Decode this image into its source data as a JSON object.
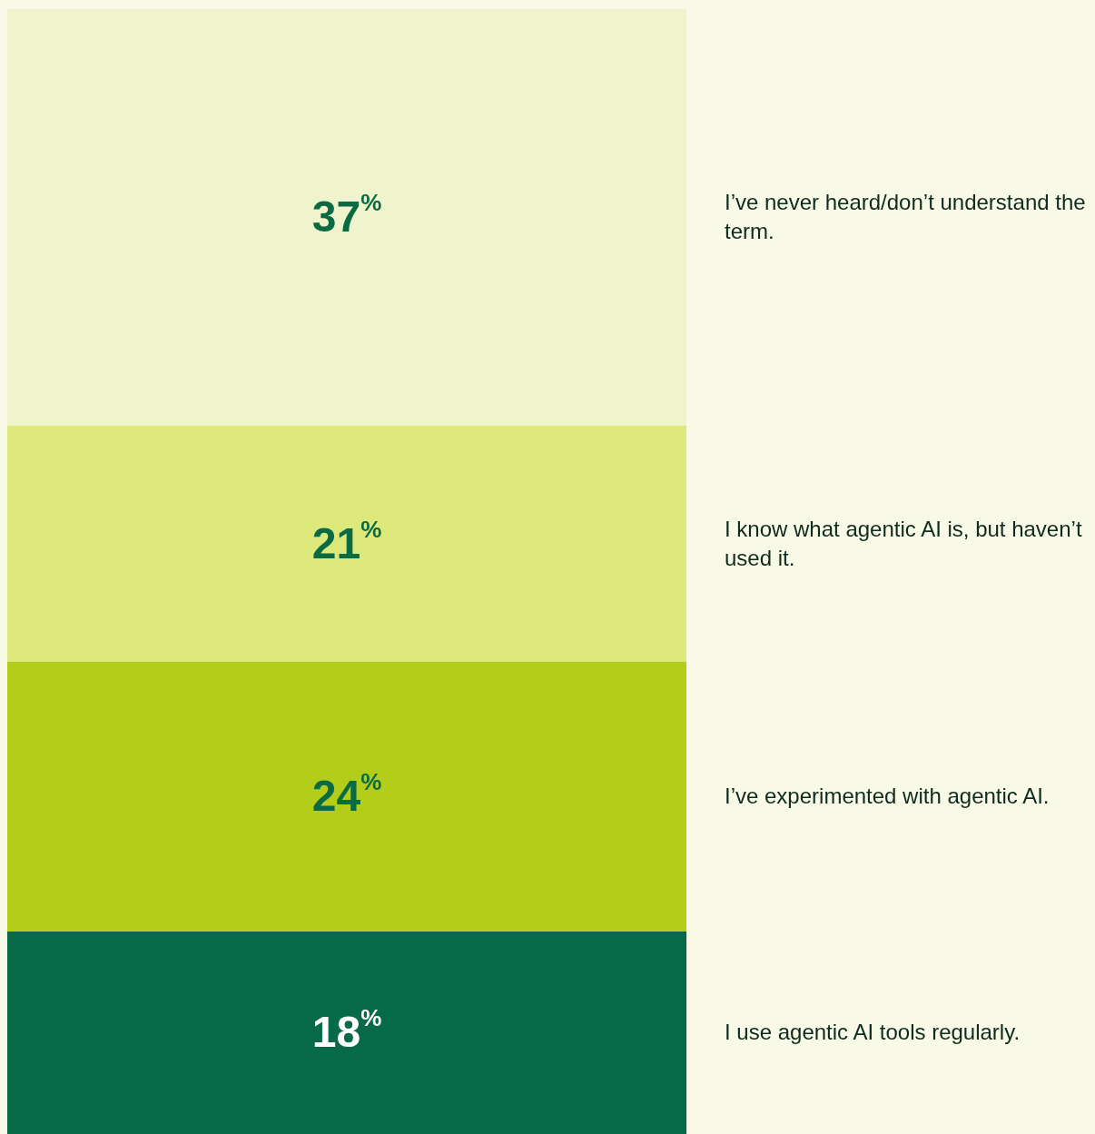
{
  "chart_data": {
    "type": "bar",
    "stacked": true,
    "categories": [
      null
    ],
    "series": [
      {
        "name": "I use agentic AI tools regularly.",
        "color": "#066948",
        "values": [
          18
        ],
        "value_labels": [
          "18$^{%}$"
        ]
      },
      {
        "name": "I’ve experimented with agentic AI.",
        "color": "#b4cc1a",
        "values": [
          24
        ],
        "value_labels": [
          "24$^{%}$"
        ]
      },
      {
        "name": "I know what agentic AI is, but haven’t used it.",
        "color": "#dde97a",
        "values": [
          21
        ],
        "value_labels": [
          "21$^{%}$"
        ]
      },
      {
        "name": "I’ve never heard/don’t understand the term.",
        "color": "#f0f4cc",
        "values": [
          37
        ],
        "value_labels": [
          "37$^{%}$"
        ]
      }
    ]
  }
}
